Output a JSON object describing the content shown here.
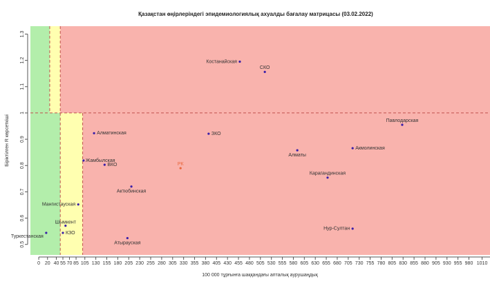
{
  "chart_data": {
    "type": "scatter",
    "title": "Қазақстан өңірлеріндегі эпидемиологиялық ахуалды бағалау матрицасы  (03.02.2022)",
    "x_label": "100 000 тұрғынға шаққандағы апталық аурушаңдық",
    "y_label": "Біріктілген R көрсеткіші",
    "labels": [
      "Костанайская",
      "СКО",
      "Павлодарская",
      "Алматинская",
      "ЗКО",
      "Алматы",
      "Акмолинская",
      "Жамбылская",
      "ВКО",
      "РК",
      "Актюбинская",
      "Карагандинская",
      "Мангистауская",
      "Шымкент",
      "КЗО",
      "Туркестанская",
      "Атырауская",
      "Нур-Султан"
    ],
    "x": [
      458,
      515,
      828,
      126,
      387,
      589,
      715,
      102,
      150,
      323,
      211,
      658,
      90,
      61,
      55,
      17,
      202,
      715
    ],
    "y": [
      1.195,
      1.156,
      0.955,
      0.923,
      0.921,
      0.858,
      0.866,
      0.819,
      0.803,
      0.79,
      0.72,
      0.754,
      0.652,
      0.571,
      0.544,
      0.544,
      0.524,
      0.56
    ],
    "point_color": "#3a1fa8",
    "highlight_color": "#e8663a",
    "highlight_index": 9,
    "zones": {
      "threshold_r": 1.0,
      "upper_green_max": 25,
      "upper_yellow_max": 49,
      "lower_green_max": 49,
      "lower_yellow_max": 100,
      "green": "#b3eeab",
      "yellow": "#ffffb0",
      "red": "#f9b3ad",
      "line_color": "#c0504d"
    },
    "xlim": [
      -19,
      1028
    ],
    "ylim": [
      0.46,
      1.33
    ],
    "xticks": [
      0,
      20,
      40,
      55,
      70,
      85,
      105,
      130,
      155,
      180,
      205,
      230,
      255,
      280,
      305,
      330,
      355,
      380,
      405,
      430,
      455,
      480,
      505,
      530,
      555,
      580,
      605,
      630,
      655,
      680,
      705,
      730,
      755,
      780,
      805,
      830,
      855,
      880,
      905,
      930,
      955,
      980,
      1010
    ],
    "yticks": [
      0.5,
      0.6,
      0.7,
      0.8,
      0.9,
      1,
      1.1,
      1.2,
      1.3
    ]
  }
}
